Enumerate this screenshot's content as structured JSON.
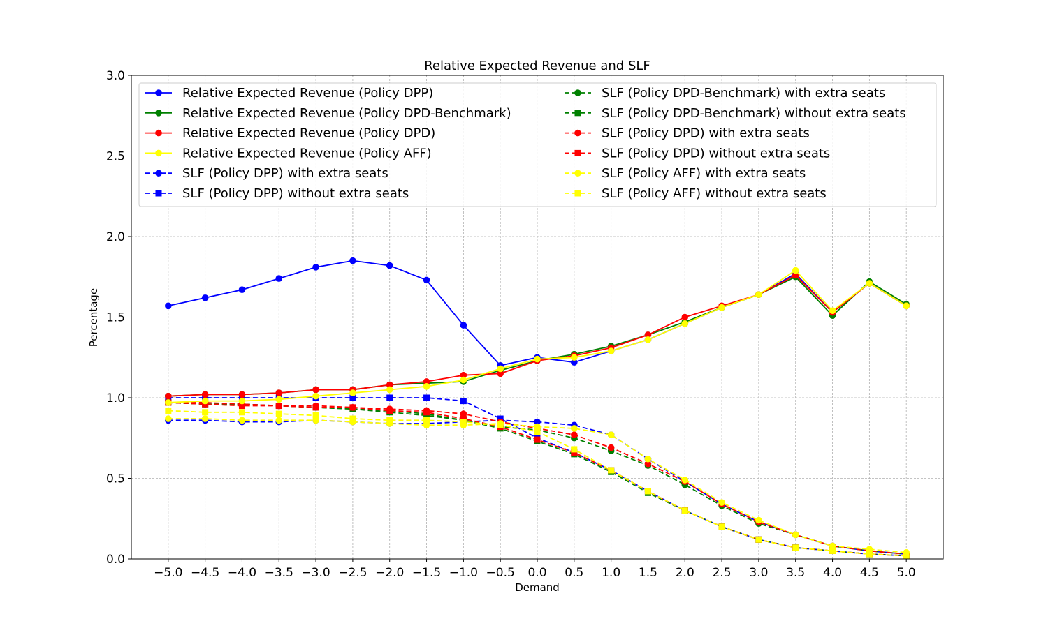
{
  "chart_data": {
    "type": "line",
    "title": "Relative Expected Revenue and SLF",
    "xlabel": "Demand",
    "ylabel": "Percentage",
    "xlim": [
      -5.5,
      5.5
    ],
    "ylim": [
      0,
      3.0
    ],
    "grid": true,
    "legend_position": "top",
    "x": [
      -5.0,
      -4.5,
      -4.0,
      -3.5,
      -3.0,
      -2.5,
      -2.0,
      -1.5,
      -1.0,
      -0.5,
      0.0,
      0.5,
      1.0,
      1.5,
      2.0,
      2.5,
      3.0,
      3.5,
      4.0,
      4.5,
      5.0
    ],
    "x_tick_labels": [
      "−5.0",
      "−4.5",
      "−4.0",
      "−3.5",
      "−3.0",
      "−2.5",
      "−2.0",
      "−1.5",
      "−1.0",
      "−0.5",
      "0.0",
      "0.5",
      "1.0",
      "1.5",
      "2.0",
      "2.5",
      "3.0",
      "3.5",
      "4.0",
      "4.5",
      "5.0"
    ],
    "y_ticks": [
      0.0,
      0.5,
      1.0,
      1.5,
      2.0,
      2.5,
      3.0
    ],
    "y_tick_labels": [
      "0.0",
      "0.5",
      "1.0",
      "1.5",
      "2.0",
      "2.5",
      "3.0"
    ],
    "series": [
      {
        "name": "Relative Expected Revenue (Policy DPP)",
        "color": "#0000ff",
        "style": "solid",
        "marker": "circle",
        "values": [
          1.57,
          1.62,
          1.67,
          1.74,
          1.81,
          1.85,
          1.82,
          1.73,
          1.45,
          1.2,
          1.25,
          1.22,
          1.29,
          1.36,
          1.46,
          1.56,
          1.64,
          1.77,
          1.53,
          1.71,
          1.57
        ]
      },
      {
        "name": "Relative Expected Revenue (Policy DPD-Benchmark)",
        "color": "#008000",
        "style": "solid",
        "marker": "circle",
        "values": [
          1.01,
          1.02,
          1.02,
          1.03,
          1.05,
          1.05,
          1.08,
          1.09,
          1.1,
          1.17,
          1.23,
          1.27,
          1.32,
          1.39,
          1.47,
          1.56,
          1.64,
          1.75,
          1.51,
          1.72,
          1.58
        ]
      },
      {
        "name": "Relative Expected Revenue (Policy DPD)",
        "color": "#ff0000",
        "style": "solid",
        "marker": "circle",
        "values": [
          1.01,
          1.02,
          1.02,
          1.03,
          1.05,
          1.05,
          1.08,
          1.1,
          1.14,
          1.15,
          1.23,
          1.26,
          1.31,
          1.39,
          1.5,
          1.57,
          1.64,
          1.76,
          1.53,
          1.71,
          1.57
        ]
      },
      {
        "name": "Relative Expected Revenue (Policy AFF)",
        "color": "#ffff00",
        "style": "solid",
        "marker": "circle",
        "values": [
          0.97,
          0.98,
          0.98,
          0.99,
          1.01,
          1.03,
          1.05,
          1.07,
          1.11,
          1.18,
          1.24,
          1.25,
          1.29,
          1.36,
          1.46,
          1.56,
          1.64,
          1.79,
          1.54,
          1.71,
          1.57
        ]
      },
      {
        "name": "SLF (Policy DPP) with extra seats",
        "color": "#0000ff",
        "style": "dashed",
        "marker": "circle",
        "values": [
          0.86,
          0.86,
          0.85,
          0.85,
          0.86,
          0.85,
          0.84,
          0.84,
          0.85,
          0.86,
          0.85,
          0.83,
          0.77,
          0.62,
          0.48,
          0.34,
          0.23,
          0.15,
          0.08,
          0.05,
          0.03
        ]
      },
      {
        "name": "SLF (Policy DPP) without extra seats",
        "color": "#0000ff",
        "style": "dashed",
        "marker": "square",
        "values": [
          1.0,
          1.0,
          1.0,
          1.0,
          1.0,
          1.0,
          1.0,
          1.0,
          0.98,
          0.87,
          0.75,
          0.66,
          0.55,
          0.42,
          0.3,
          0.2,
          0.12,
          0.07,
          0.05,
          0.03,
          0.02
        ]
      },
      {
        "name": "SLF (Policy DPD-Benchmark) with extra seats",
        "color": "#008000",
        "style": "dashed",
        "marker": "circle",
        "values": [
          0.97,
          0.96,
          0.96,
          0.95,
          0.94,
          0.93,
          0.92,
          0.9,
          0.86,
          0.82,
          0.8,
          0.75,
          0.67,
          0.58,
          0.46,
          0.33,
          0.22,
          0.15,
          0.08,
          0.05,
          0.03
        ]
      },
      {
        "name": "SLF (Policy DPD-Benchmark) without extra seats",
        "color": "#008000",
        "style": "dashed",
        "marker": "square",
        "values": [
          0.97,
          0.96,
          0.96,
          0.95,
          0.94,
          0.93,
          0.91,
          0.89,
          0.86,
          0.81,
          0.73,
          0.65,
          0.54,
          0.41,
          0.3,
          0.2,
          0.12,
          0.07,
          0.05,
          0.03,
          0.02
        ]
      },
      {
        "name": "SLF (Policy DPD) with extra seats",
        "color": "#ff0000",
        "style": "dashed",
        "marker": "circle",
        "values": [
          0.97,
          0.97,
          0.96,
          0.95,
          0.95,
          0.94,
          0.93,
          0.92,
          0.9,
          0.85,
          0.81,
          0.77,
          0.69,
          0.59,
          0.48,
          0.34,
          0.23,
          0.15,
          0.08,
          0.05,
          0.03
        ]
      },
      {
        "name": "SLF (Policy DPD) without extra seats",
        "color": "#ff0000",
        "style": "dashed",
        "marker": "square",
        "values": [
          0.97,
          0.96,
          0.95,
          0.95,
          0.94,
          0.94,
          0.92,
          0.91,
          0.87,
          0.82,
          0.74,
          0.66,
          0.55,
          0.42,
          0.3,
          0.2,
          0.12,
          0.07,
          0.05,
          0.03,
          0.02
        ]
      },
      {
        "name": "SLF (Policy AFF) with extra seats",
        "color": "#ffff00",
        "style": "dashed",
        "marker": "circle",
        "values": [
          0.87,
          0.87,
          0.86,
          0.86,
          0.86,
          0.85,
          0.84,
          0.83,
          0.83,
          0.84,
          0.82,
          0.81,
          0.77,
          0.62,
          0.49,
          0.35,
          0.24,
          0.15,
          0.08,
          0.06,
          0.04
        ]
      },
      {
        "name": "SLF (Policy AFF) without extra seats",
        "color": "#ffff00",
        "style": "dashed",
        "marker": "square",
        "values": [
          0.92,
          0.91,
          0.91,
          0.9,
          0.89,
          0.87,
          0.86,
          0.86,
          0.85,
          0.83,
          0.79,
          0.68,
          0.55,
          0.42,
          0.3,
          0.2,
          0.12,
          0.07,
          0.05,
          0.03,
          0.02
        ]
      }
    ]
  }
}
